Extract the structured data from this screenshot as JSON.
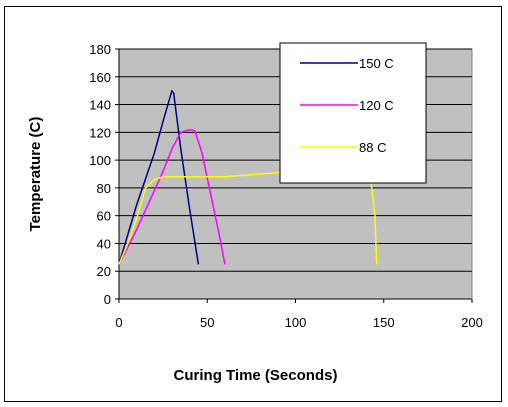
{
  "chart_data": {
    "type": "line",
    "xlabel": "Curing Time (Seconds)",
    "ylabel": "Temperature (C)",
    "xlim": [
      0,
      200
    ],
    "ylim": [
      0,
      180
    ],
    "xticks": [
      0,
      50,
      100,
      150,
      200
    ],
    "yticks": [
      0,
      20,
      40,
      60,
      80,
      100,
      120,
      140,
      160,
      180
    ],
    "grid": "horizontal",
    "legend_position": "top-right",
    "plot_background": "#c0c0c0",
    "series": [
      {
        "name": "150 C",
        "color": "#000080",
        "x": [
          0,
          10,
          20,
          25,
          30,
          31,
          35,
          40,
          45
        ],
        "y": [
          25,
          68,
          105,
          128,
          150,
          148,
          108,
          65,
          25
        ]
      },
      {
        "name": "120 C",
        "color": "#ff00ff",
        "x": [
          0,
          10,
          20,
          25,
          30,
          35,
          40,
          43,
          47,
          52,
          57,
          60
        ],
        "y": [
          25,
          50,
          78,
          92,
          108,
          120,
          122,
          121,
          105,
          75,
          45,
          25
        ]
      },
      {
        "name": "88 C",
        "color": "#ffff00",
        "x": [
          0,
          5,
          10,
          15,
          20,
          25,
          30,
          40,
          60,
          80,
          100,
          120,
          140,
          143,
          145,
          146
        ],
        "y": [
          25,
          40,
          58,
          80,
          86,
          88,
          88,
          88,
          88,
          90,
          92,
          92,
          89,
          82,
          60,
          25
        ]
      }
    ]
  }
}
